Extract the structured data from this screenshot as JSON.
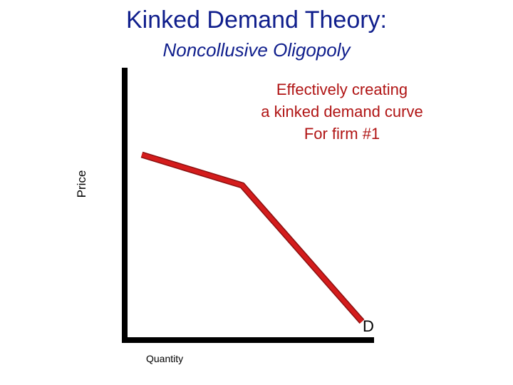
{
  "title": "Kinked Demand Theory:",
  "subtitle": "Noncollusive Oligopoly",
  "annotation": {
    "lines": [
      "Effectively creating",
      "a kinked demand curve",
      "For firm #1"
    ]
  },
  "axes": {
    "y_label": "Price",
    "x_label": "Quantity"
  },
  "demand_curve": {
    "label": "D",
    "color": "#d41c1c",
    "outline_color": "#8a1010"
  },
  "colors": {
    "title": "#0f1e8c",
    "annotation": "#b01414",
    "axis": "#000000"
  }
}
